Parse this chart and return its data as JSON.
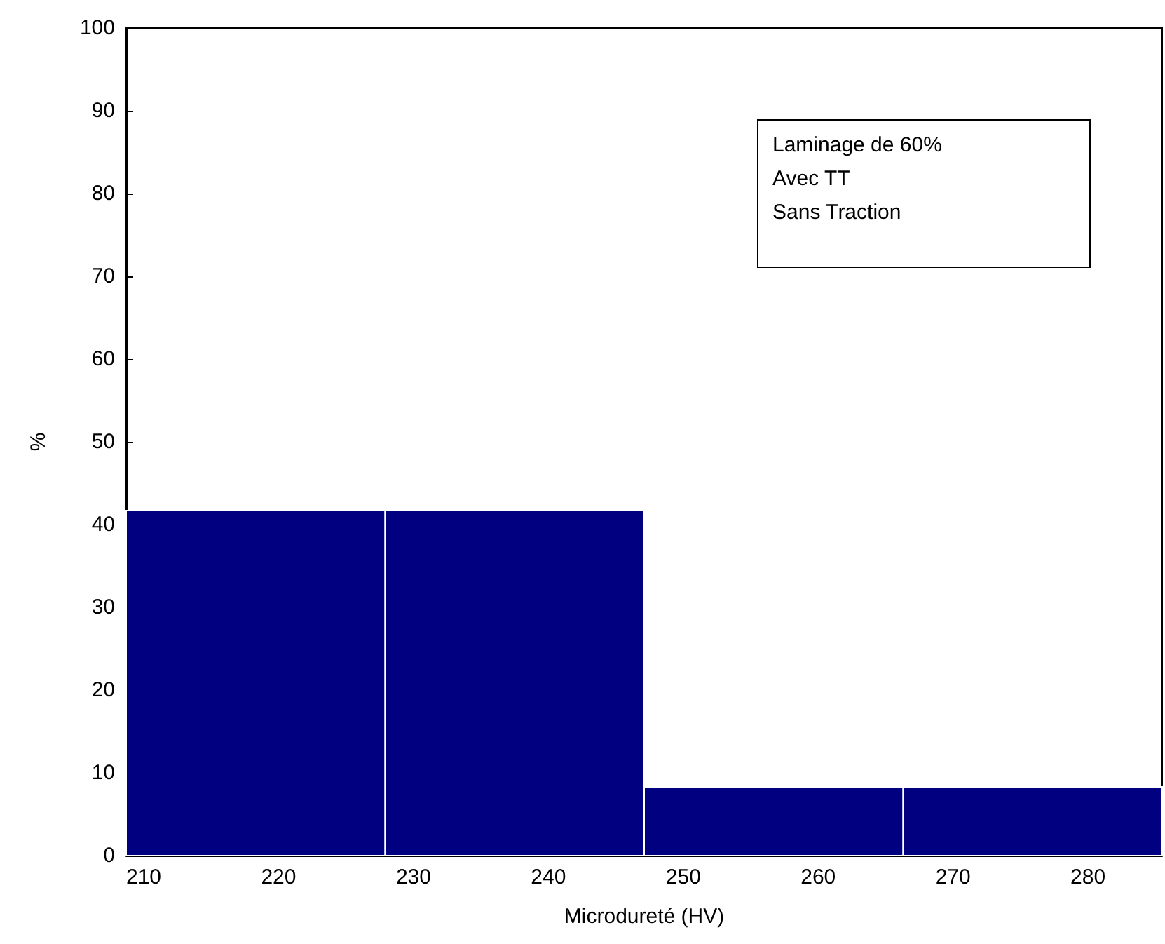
{
  "chart_data": {
    "type": "histogram",
    "xlabel": "Microdureté (HV)",
    "ylabel": "%",
    "bins": [
      208.7,
      227.9,
      247.1,
      266.3,
      285.5
    ],
    "values": [
      41.7,
      41.7,
      8.3,
      8.3
    ],
    "color": "#000080",
    "xlim": [
      208.7,
      285.5
    ],
    "xticks": [
      210,
      220,
      230,
      240,
      250,
      260,
      270,
      280
    ],
    "ylim": [
      0,
      100
    ],
    "yticks": [
      0,
      10,
      20,
      30,
      40,
      50,
      60,
      70,
      80,
      90,
      100
    ],
    "grid": false,
    "annotations": [
      "Laminage de 60%",
      "Avec TT",
      "Sans Traction"
    ]
  }
}
